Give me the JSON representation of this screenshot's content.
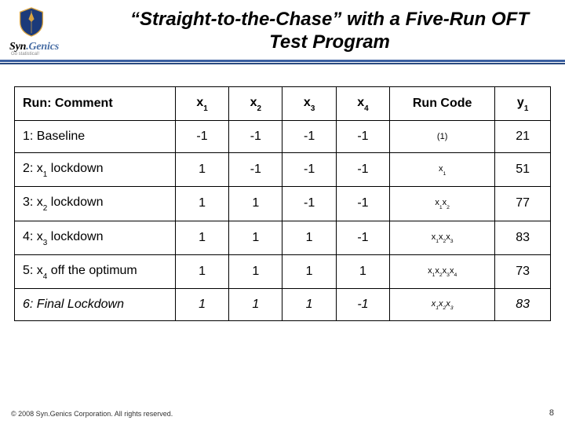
{
  "brand": {
    "part1": "Syn",
    "dot": ".",
    "part2": "Genics",
    "tagline": "Go statistical!"
  },
  "title": "“Straight-to-the-Chase” with a Five-Run OFT Test Program",
  "table": {
    "headers": {
      "comment": "Run: Comment",
      "x1": {
        "base": "x",
        "sub": "1"
      },
      "x2": {
        "base": "x",
        "sub": "2"
      },
      "x3": {
        "base": "x",
        "sub": "3"
      },
      "x4": {
        "base": "x",
        "sub": "4"
      },
      "code": "Run Code",
      "y1": {
        "base": "y",
        "sub": "1"
      }
    },
    "rows": [
      {
        "comment": "1: Baseline",
        "x": [
          "-1",
          "-1",
          "-1",
          "-1"
        ],
        "code_parts": [
          {
            "t": "(1)"
          }
        ],
        "y": "21",
        "italic": false
      },
      {
        "comment_parts": [
          {
            "t": "2: x"
          },
          {
            "sub": "1"
          },
          {
            "t": " lockdown"
          }
        ],
        "x": [
          "1",
          "-1",
          "-1",
          "-1"
        ],
        "code_parts": [
          {
            "t": "x"
          },
          {
            "sub": "1"
          }
        ],
        "y": "51",
        "italic": false
      },
      {
        "comment_parts": [
          {
            "t": "3: x"
          },
          {
            "sub": "2"
          },
          {
            "t": " lockdown"
          }
        ],
        "x": [
          "1",
          "1",
          "-1",
          "-1"
        ],
        "code_parts": [
          {
            "t": "x"
          },
          {
            "sub": "1"
          },
          {
            "t": "x"
          },
          {
            "sub": "2"
          }
        ],
        "y": "77",
        "italic": false
      },
      {
        "comment_parts": [
          {
            "t": "4: x"
          },
          {
            "sub": "3"
          },
          {
            "t": " lockdown"
          }
        ],
        "x": [
          "1",
          "1",
          "1",
          "-1"
        ],
        "code_parts": [
          {
            "t": "x"
          },
          {
            "sub": "1"
          },
          {
            "t": "x"
          },
          {
            "sub": "2"
          },
          {
            "t": "x"
          },
          {
            "sub": "3"
          }
        ],
        "y": "83",
        "italic": false
      },
      {
        "comment_parts": [
          {
            "t": "5: x"
          },
          {
            "sub": "4"
          },
          {
            "t": " off the optimum"
          }
        ],
        "x": [
          "1",
          "1",
          "1",
          "1"
        ],
        "code_parts": [
          {
            "t": "x"
          },
          {
            "sub": "1"
          },
          {
            "t": "x"
          },
          {
            "sub": "2"
          },
          {
            "t": "x"
          },
          {
            "sub": "3"
          },
          {
            "t": "x"
          },
          {
            "sub": "4"
          }
        ],
        "y": "73",
        "italic": false
      },
      {
        "comment": "6: Final Lockdown",
        "x": [
          "1",
          "1",
          "1",
          "-1"
        ],
        "code_parts": [
          {
            "t": "x"
          },
          {
            "sub": "1"
          },
          {
            "t": "x"
          },
          {
            "sub": "2"
          },
          {
            "t": "x"
          },
          {
            "sub": "3"
          }
        ],
        "y": "83",
        "italic": true
      }
    ]
  },
  "footer": {
    "copyright": "© 2008 Syn.Genics Corporation. All rights reserved.",
    "page": "8"
  },
  "colors": {
    "rule1": "#3a5fa0",
    "rule2": "#2a4a80",
    "shield_blue": "#1b3a7a",
    "shield_gold": "#d9a441"
  }
}
